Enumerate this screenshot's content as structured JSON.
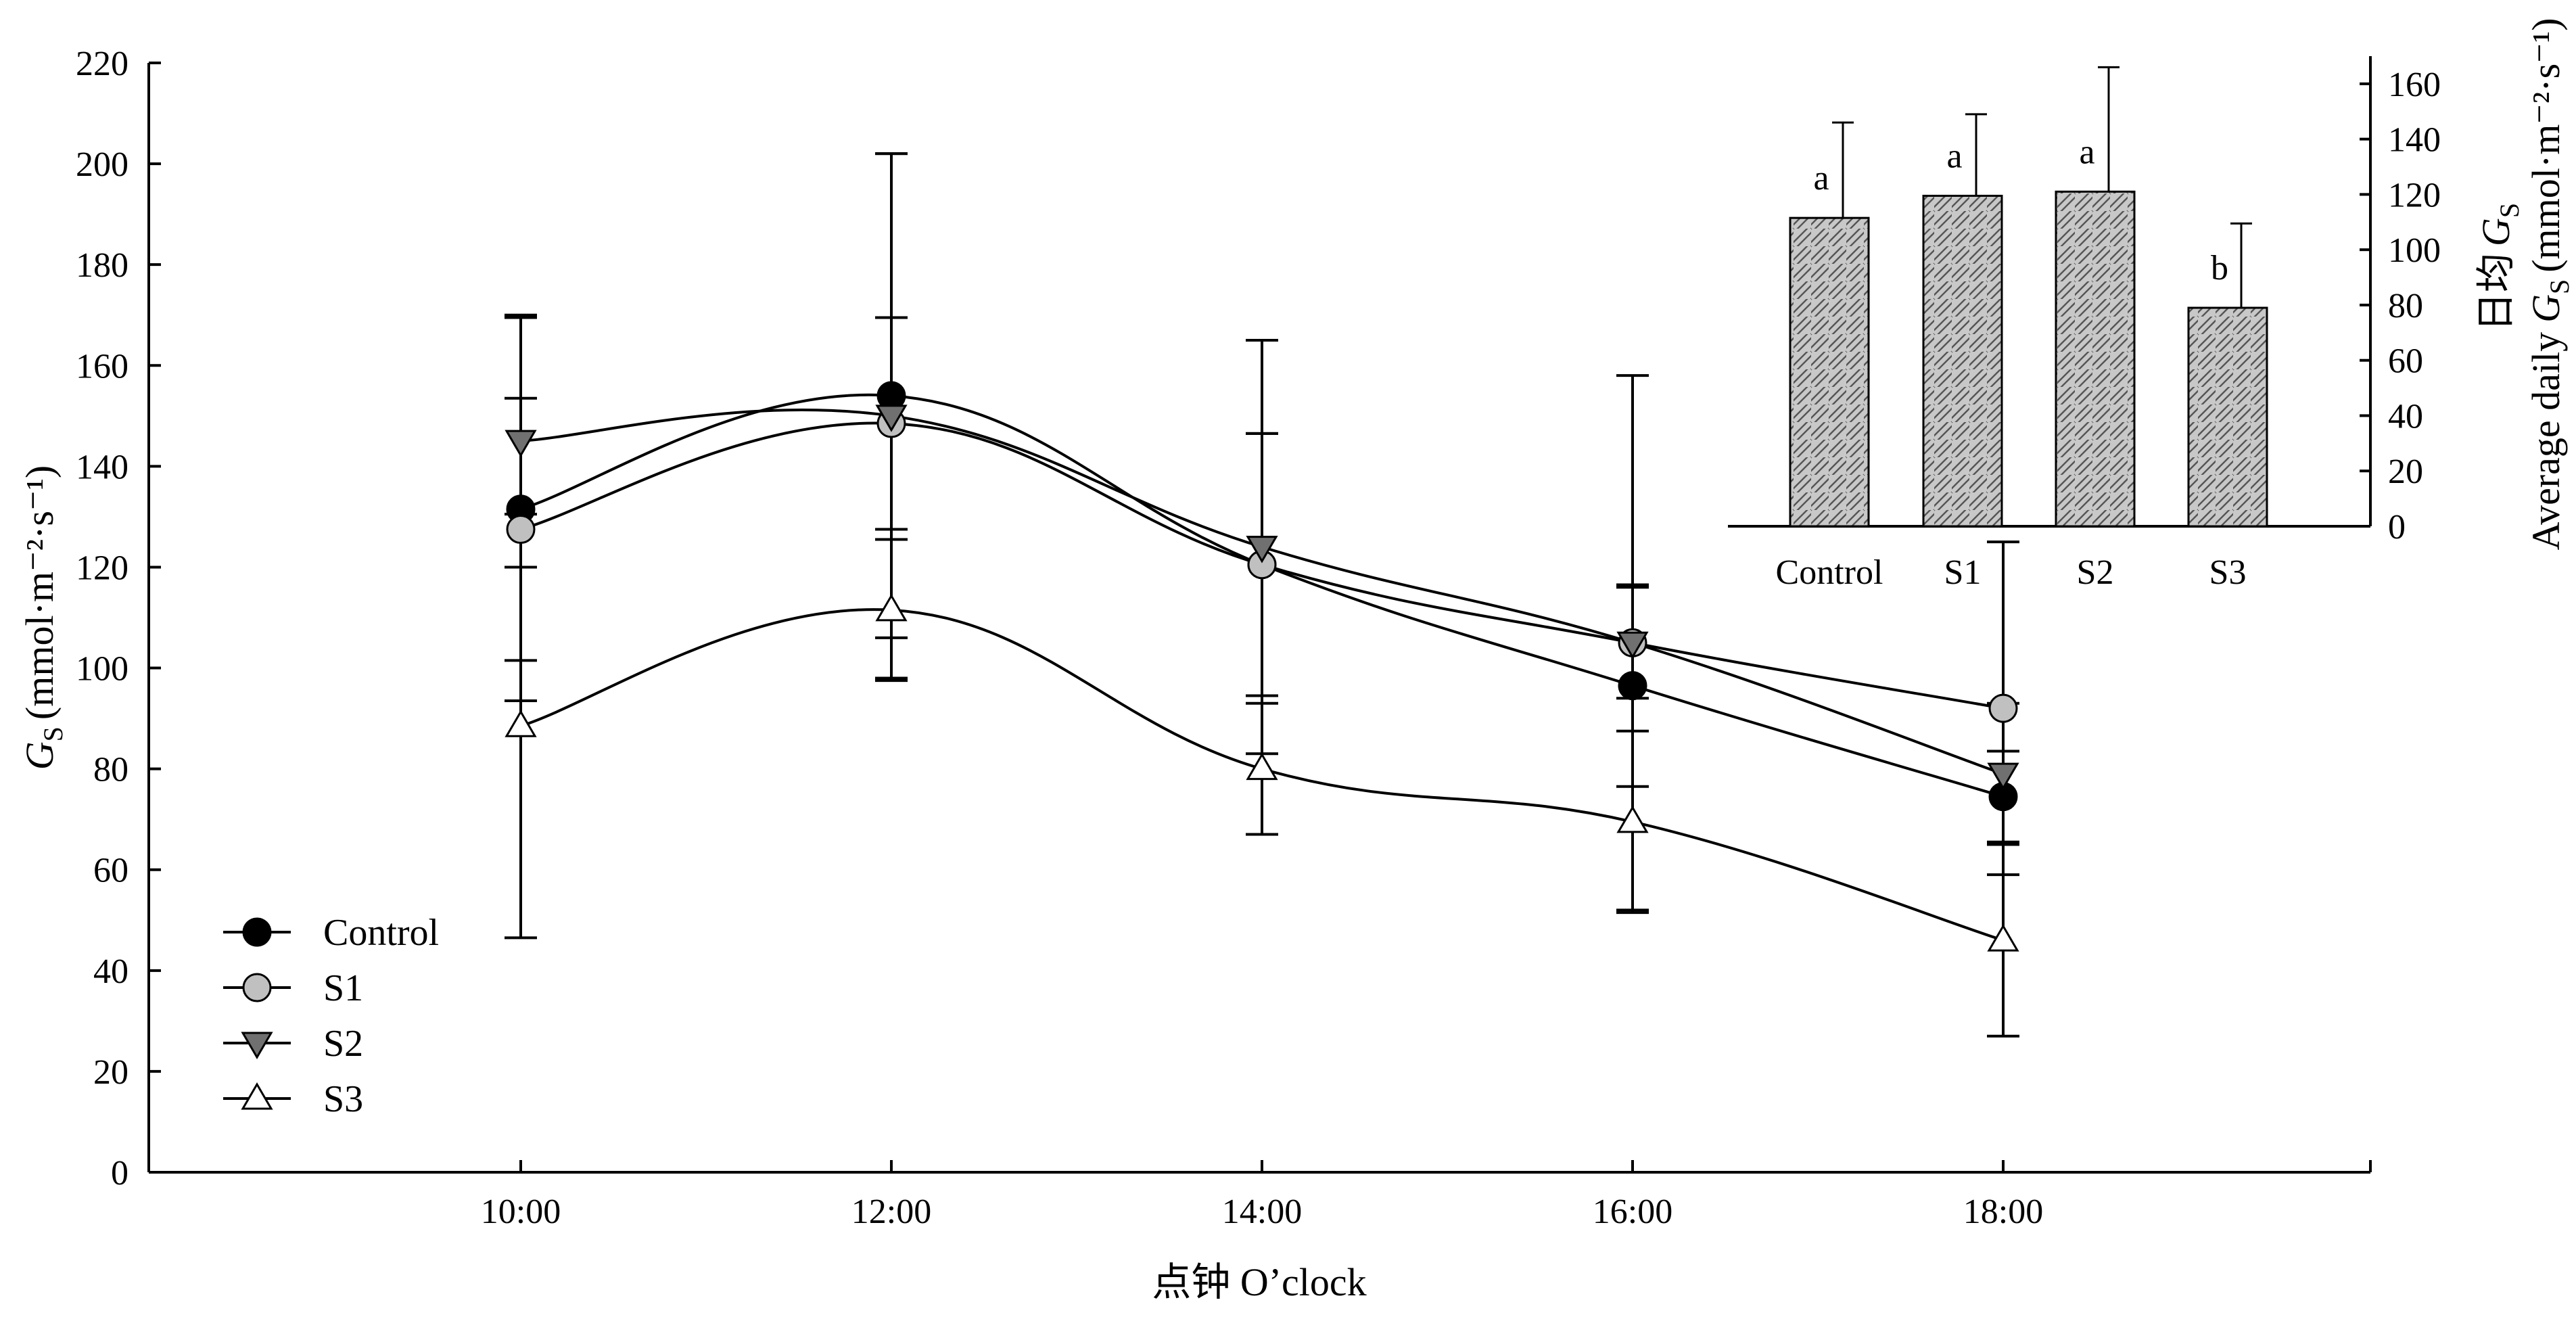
{
  "chart_data": [
    {
      "type": "line",
      "x": [
        "10:00",
        "12:00",
        "14:00",
        "16:00",
        "18:00"
      ],
      "xlabel": "点钟 O’clock",
      "ylabel": "(mmol·m⁻²·s⁻¹)",
      "ylabel_symbol": "G",
      "ylabel_sub": "S",
      "ylim": [
        0,
        220
      ],
      "yticks": [
        "0",
        "20",
        "40",
        "60",
        "80",
        "100",
        "120",
        "140",
        "160",
        "180",
        "200",
        "220"
      ],
      "legend_position": "bottom-left",
      "series": [
        {
          "name": "Control",
          "marker": "filled-circle",
          "color": "#000000",
          "values": [
            131.5,
            154,
            120.5,
            96.5,
            74.5
          ],
          "error": [
            38,
            48,
            26,
            20,
            9
          ]
        },
        {
          "name": "S1",
          "marker": "gray-circle",
          "color": "#c0c0c0",
          "values": [
            127.5,
            148.5,
            120.5,
            105,
            92
          ],
          "error": [
            26,
            21,
            26,
            11,
            33
          ]
        },
        {
          "name": "S2",
          "marker": "down-triangle",
          "color": "#707070",
          "values": [
            145,
            150,
            124,
            105,
            79
          ],
          "error": [
            25,
            52,
            41,
            53,
            14
          ]
        },
        {
          "name": "S3",
          "marker": "open-triangle",
          "color": "#ffffff",
          "values": [
            88.5,
            111.5,
            80,
            69.5,
            46
          ],
          "error": [
            42,
            14,
            13,
            18,
            19
          ]
        }
      ]
    },
    {
      "type": "bar",
      "categories": [
        "Control",
        "S1",
        "S2",
        "S3"
      ],
      "values": [
        111.5,
        119.5,
        121,
        79
      ],
      "error": [
        34.5,
        29.5,
        45,
        30.5
      ],
      "significance": [
        "a",
        "a",
        "a",
        "b"
      ],
      "ylim": [
        0,
        170
      ],
      "yticks": [
        "0",
        "20",
        "40",
        "60",
        "80",
        "100",
        "120",
        "140",
        "160"
      ],
      "ylabel_line1_cn": "日均",
      "ylabel_line1_symbol": "G",
      "ylabel_line1_sub": "S",
      "ylabel_line2_prefix": "Average daily",
      "ylabel_line2_symbol": "G",
      "ylabel_line2_sub": "S",
      "ylabel_line2_unit": "(mmol·m⁻²·s⁻¹)",
      "fill": "hatched-gray",
      "axis_side": "right"
    }
  ]
}
